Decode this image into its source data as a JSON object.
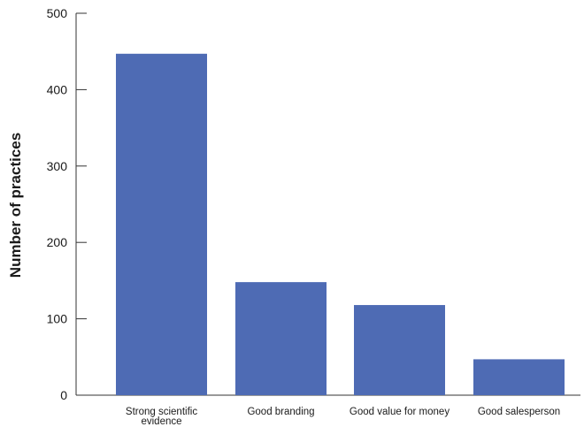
{
  "chart_data": {
    "type": "bar",
    "title": "",
    "xlabel": "",
    "ylabel": "Number of practices",
    "categories": [
      "Strong scientific evidence",
      "Good branding",
      "Good value for money",
      "Good salesperson"
    ],
    "category_lines": [
      [
        "Strong scientific",
        "evidence"
      ],
      [
        "Good branding"
      ],
      [
        "Good value for money"
      ],
      [
        "Good salesperson"
      ]
    ],
    "values": [
      447,
      148,
      118,
      47
    ],
    "ylim": [
      0,
      500
    ],
    "yticks": [
      0,
      100,
      200,
      300,
      400,
      500
    ],
    "grid": false,
    "legend": "none",
    "bar_color": "#4e6bb4",
    "axis_color": "#333333"
  }
}
